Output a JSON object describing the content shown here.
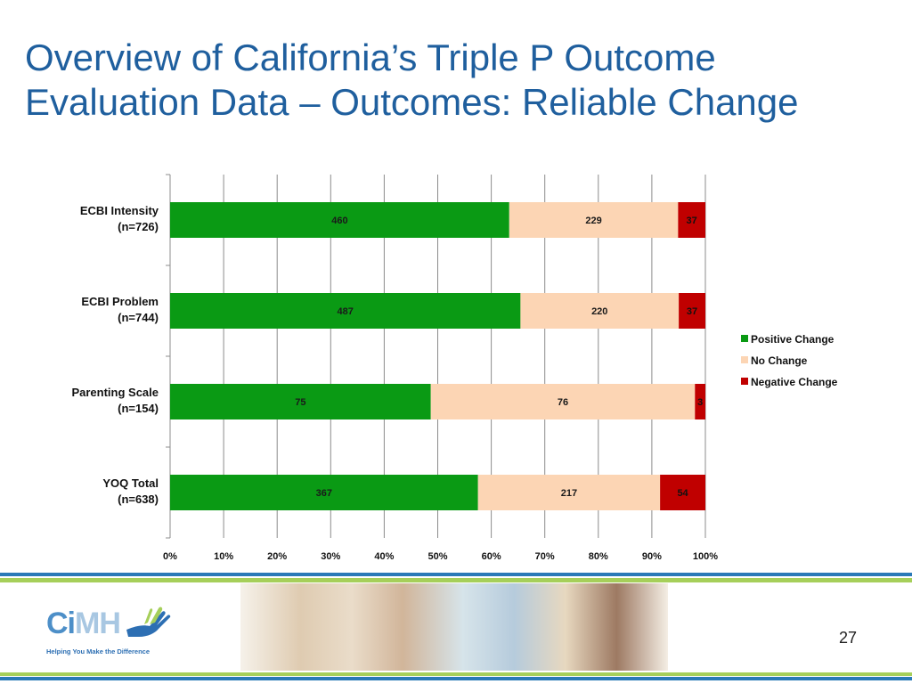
{
  "slide": {
    "title_line1": "Overview of California’s Triple P Outcome",
    "title_line2": "Evaluation Data – Outcomes: Reliable Change",
    "page_number": "27"
  },
  "logo": {
    "brand": "CiMH",
    "tagline": "Helping You Make the Difference",
    "color": "#4d8fc8"
  },
  "chart_data": {
    "type": "bar",
    "orientation": "horizontal",
    "stacking": "percent",
    "categories": [
      [
        "ECBI Intensity",
        "(n=726)"
      ],
      [
        "ECBI Problem",
        "(n=744)"
      ],
      [
        "Parenting Scale",
        "(n=154)"
      ],
      [
        "YOQ Total",
        "(n=638)"
      ]
    ],
    "series": [
      {
        "name": "Positive Change",
        "color": "#0a9a14",
        "values": [
          460,
          487,
          75,
          367
        ]
      },
      {
        "name": "No Change",
        "color": "#fcd5b4",
        "values": [
          229,
          220,
          76,
          217
        ]
      },
      {
        "name": "Negative Change",
        "color": "#c00000",
        "values": [
          37,
          37,
          3,
          54
        ]
      }
    ],
    "xlim": [
      0,
      100
    ],
    "ticks": [
      "0%",
      "10%",
      "20%",
      "30%",
      "40%",
      "50%",
      "60%",
      "70%",
      "80%",
      "90%",
      "100%"
    ],
    "grid": true,
    "legend_position": "right",
    "title": "",
    "xlabel": "",
    "ylabel": ""
  }
}
